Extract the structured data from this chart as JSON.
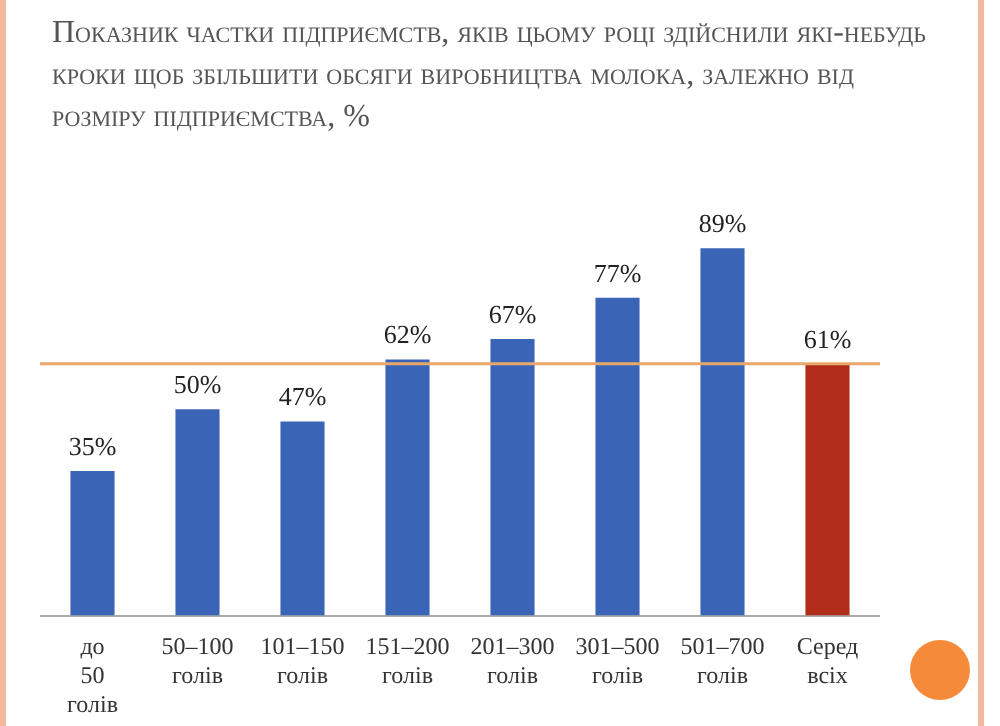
{
  "chart_data": {
    "type": "bar",
    "title": "Показник частки підприємств, яків цьому році здійснили які-небудь кроки щоб збільшити обсяги виробництва молока, залежно від розміру підприємства, %",
    "categories": [
      "до 50 голів",
      "50–100 голів",
      "101–150 голів",
      "151–200 голів",
      "201–300 голів",
      "301–500 голів",
      "501–700 голів",
      "Серед всіх"
    ],
    "values": [
      35,
      50,
      47,
      62,
      67,
      77,
      89,
      61
    ],
    "colors": [
      "#3a64b6",
      "#3a64b6",
      "#3a64b6",
      "#3a64b6",
      "#3a64b6",
      "#3a64b6",
      "#3a64b6",
      "#b02e1a"
    ],
    "value_labels": [
      "35%",
      "50%",
      "47%",
      "62%",
      "67%",
      "77%",
      "89%",
      "61%"
    ],
    "ref_lines": [
      {
        "axis": "y",
        "value": 61,
        "color": "#e9a86a"
      }
    ],
    "grid": false,
    "legend": false
  }
}
